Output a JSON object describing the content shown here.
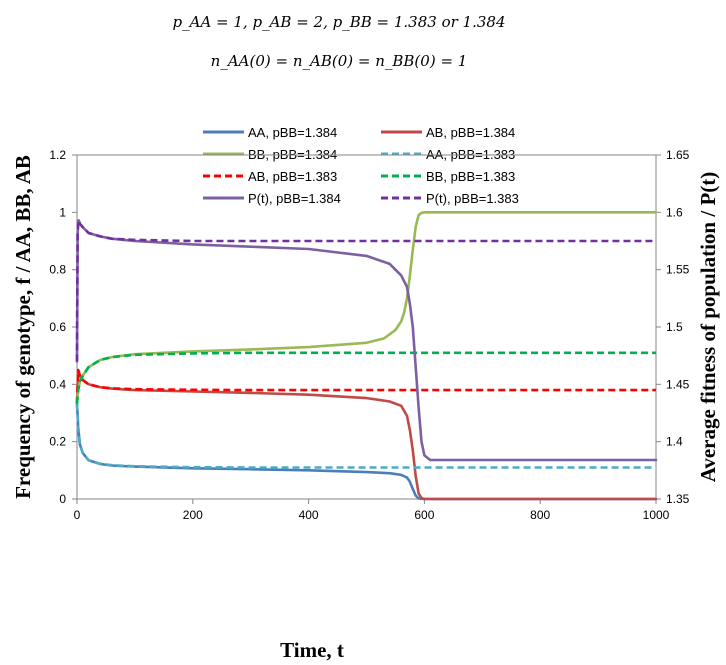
{
  "chart_data": {
    "type": "line",
    "title_line1": "p_AA = 1, p_AB = 2, p_BB = 1.383 or 1.384",
    "title_line2": "n_AA(0) = n_AB(0) = n_BB(0) = 1",
    "xlabel": "Time, t",
    "ylabel_left": "Frequency of genotype, f / AA, BB, AB",
    "ylabel_right": "Average fitness of population / P(t)",
    "xlim": [
      0,
      1000
    ],
    "ylim_left": [
      0,
      1.2
    ],
    "ylim_right": [
      1.35,
      1.65
    ],
    "x_ticks": [
      "0",
      "200",
      "400",
      "600",
      "800",
      "1000"
    ],
    "y_ticks_left": [
      "0",
      "0.2",
      "0.4",
      "0.6",
      "0.8",
      "1",
      "1.2"
    ],
    "y_ticks_right": [
      "1.35",
      "1.4",
      "1.45",
      "1.5",
      "1.55",
      "1.6",
      "1.65"
    ],
    "grid": false,
    "legend_position": "top",
    "series": [
      {
        "name": "AA, pBB=1.384",
        "axis": "left",
        "color": "#4A7EBB",
        "dash": false,
        "x": [
          0,
          2,
          5,
          10,
          20,
          40,
          60,
          100,
          200,
          300,
          400,
          500,
          540,
          560,
          570,
          575,
          580,
          585,
          590,
          600,
          1000
        ],
        "y": [
          0.333,
          0.25,
          0.19,
          0.16,
          0.135,
          0.122,
          0.117,
          0.113,
          0.107,
          0.104,
          0.1,
          0.094,
          0.09,
          0.084,
          0.075,
          0.06,
          0.035,
          0.012,
          0.002,
          0,
          0
        ]
      },
      {
        "name": "AB, pBB=1.384",
        "axis": "left",
        "color": "#BE4B48",
        "dash": false,
        "x": [
          0,
          2,
          5,
          10,
          20,
          40,
          60,
          100,
          200,
          300,
          400,
          500,
          540,
          560,
          570,
          575,
          580,
          585,
          590,
          595,
          600,
          1000
        ],
        "y": [
          0.333,
          0.45,
          0.43,
          0.415,
          0.4,
          0.39,
          0.385,
          0.38,
          0.375,
          0.37,
          0.364,
          0.352,
          0.34,
          0.325,
          0.29,
          0.24,
          0.17,
          0.08,
          0.02,
          0.003,
          0,
          0
        ]
      },
      {
        "name": "BB, pBB=1.384",
        "axis": "left",
        "color": "#98B954",
        "dash": false,
        "x": [
          0,
          2,
          5,
          10,
          20,
          40,
          60,
          100,
          200,
          300,
          400,
          500,
          530,
          550,
          560,
          565,
          570,
          575,
          580,
          585,
          590,
          595,
          600,
          1000
        ],
        "y": [
          0.333,
          0.38,
          0.41,
          0.43,
          0.46,
          0.485,
          0.495,
          0.505,
          0.515,
          0.522,
          0.53,
          0.545,
          0.56,
          0.59,
          0.62,
          0.65,
          0.7,
          0.78,
          0.87,
          0.95,
          0.99,
          0.998,
          1,
          1
        ]
      },
      {
        "name": "AA, pBB=1.383",
        "axis": "left",
        "color": "#4BACC6",
        "dash": true,
        "x": [
          0,
          2,
          5,
          10,
          20,
          40,
          60,
          100,
          200,
          300,
          1000
        ],
        "y": [
          0.333,
          0.25,
          0.19,
          0.16,
          0.135,
          0.123,
          0.118,
          0.114,
          0.111,
          0.11,
          0.11
        ]
      },
      {
        "name": "AB, pBB=1.383",
        "axis": "left",
        "color": "#FF0000",
        "dash": true,
        "x": [
          0,
          2,
          5,
          10,
          20,
          40,
          60,
          100,
          200,
          300,
          1000
        ],
        "y": [
          0.333,
          0.45,
          0.43,
          0.415,
          0.4,
          0.39,
          0.386,
          0.383,
          0.381,
          0.38,
          0.38
        ]
      },
      {
        "name": "BB, pBB=1.383",
        "axis": "left",
        "color": "#00B050",
        "dash": true,
        "x": [
          0,
          2,
          5,
          10,
          20,
          40,
          60,
          100,
          200,
          300,
          1000
        ],
        "y": [
          0.333,
          0.38,
          0.41,
          0.43,
          0.46,
          0.485,
          0.495,
          0.503,
          0.508,
          0.51,
          0.51
        ]
      },
      {
        "name": "P(t), pBB=1.384",
        "axis": "right",
        "color": "#7D60A0",
        "dash": false,
        "x": [
          0,
          1,
          2,
          3,
          5,
          10,
          20,
          40,
          60,
          100,
          200,
          300,
          400,
          500,
          540,
          560,
          570,
          575,
          580,
          585,
          590,
          595,
          600,
          610,
          1000
        ],
        "y": [
          1.47,
          1.58,
          1.592,
          1.593,
          1.59,
          1.587,
          1.582,
          1.579,
          1.577,
          1.575,
          1.572,
          1.57,
          1.568,
          1.562,
          1.555,
          1.545,
          1.535,
          1.52,
          1.5,
          1.465,
          1.43,
          1.4,
          1.388,
          1.384,
          1.384
        ]
      },
      {
        "name": "P(t), pBB=1.383",
        "axis": "right",
        "color": "#7030A0",
        "dash": true,
        "x": [
          0,
          1,
          2,
          3,
          5,
          10,
          20,
          40,
          60,
          100,
          200,
          1000
        ],
        "y": [
          1.47,
          1.58,
          1.592,
          1.593,
          1.59,
          1.587,
          1.582,
          1.579,
          1.577,
          1.576,
          1.575,
          1.575
        ]
      }
    ]
  }
}
